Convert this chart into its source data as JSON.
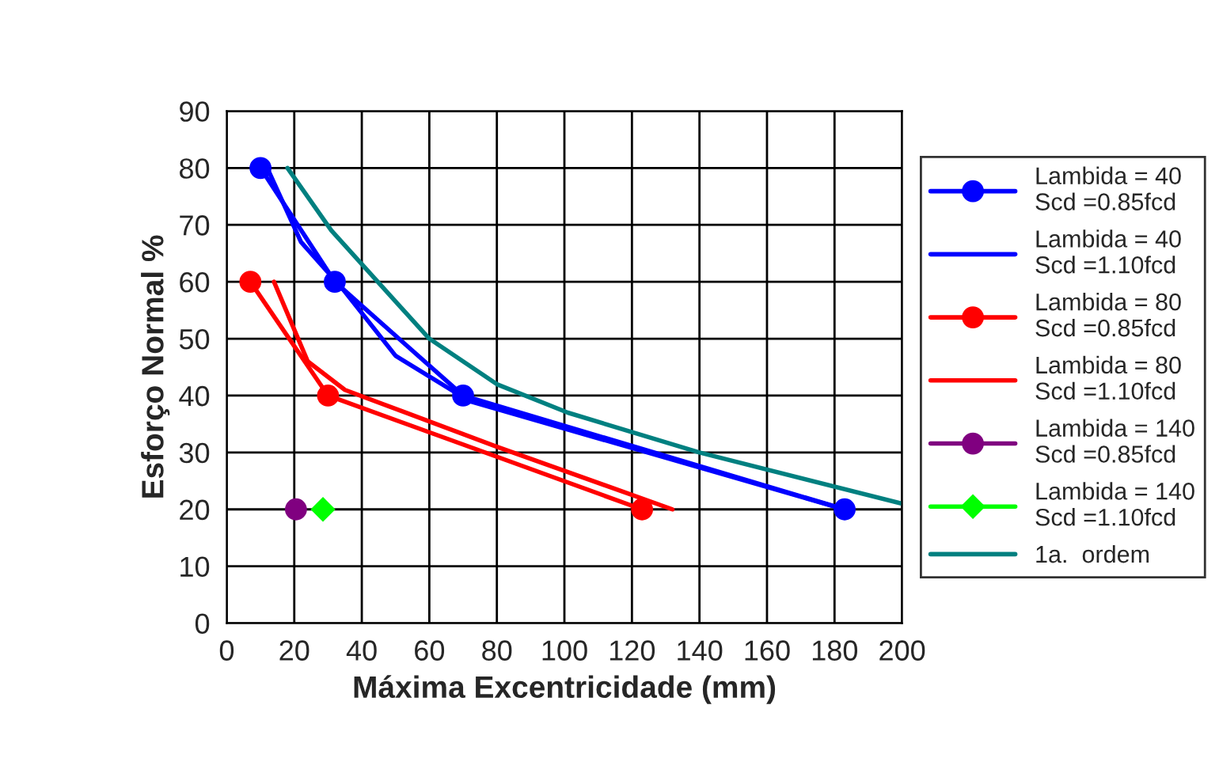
{
  "chart_data": {
    "type": "line",
    "xlabel": "Máxima Excentricidade (mm)",
    "ylabel": "Esforço Normal %",
    "xlim": [
      0,
      200
    ],
    "ylim": [
      0,
      90
    ],
    "xticks": [
      0,
      20,
      40,
      60,
      80,
      100,
      120,
      140,
      160,
      180,
      200
    ],
    "yticks": [
      0,
      10,
      20,
      30,
      40,
      50,
      60,
      70,
      80,
      90
    ],
    "grid": true,
    "legend": "right",
    "series": [
      {
        "name": "Lambida = 40\nScd =0.85fcd",
        "color": "#0000ff",
        "marker": "circle",
        "x": [
          10,
          32,
          70,
          183
        ],
        "values": [
          80,
          60,
          40,
          20
        ]
      },
      {
        "name": "Lambida = 40\nScd =1.10fcd",
        "color": "#0000ff",
        "marker": "none",
        "x": [
          12,
          22,
          34,
          50,
          72,
          183
        ],
        "values": [
          80,
          67,
          59,
          47,
          39,
          20
        ]
      },
      {
        "name": "Lambida = 80\nScd =0.85fcd",
        "color": "#ff0000",
        "marker": "circle",
        "x": [
          7,
          30,
          123
        ],
        "values": [
          60,
          40,
          20
        ]
      },
      {
        "name": "Lambida = 80\nScd =1.10fcd",
        "color": "#ff0000",
        "marker": "none",
        "x": [
          14,
          24,
          35,
          80,
          132
        ],
        "values": [
          60,
          46,
          41,
          31,
          20
        ]
      },
      {
        "name": "Lambida = 140\nScd =0.85fcd",
        "color": "#800080",
        "marker": "circle",
        "x": [
          20.5
        ],
        "values": [
          20
        ]
      },
      {
        "name": "Lambida = 140\nScd =1.10fcd",
        "color": "#00ff00",
        "marker": "diamond",
        "x": [
          28.5
        ],
        "values": [
          20
        ]
      },
      {
        "name": "1a.  ordem",
        "color": "#008080",
        "marker": "none",
        "x": [
          18,
          31,
          60,
          80,
          101,
          140,
          200
        ],
        "values": [
          80,
          69,
          50,
          42,
          37,
          30,
          21
        ]
      }
    ]
  }
}
